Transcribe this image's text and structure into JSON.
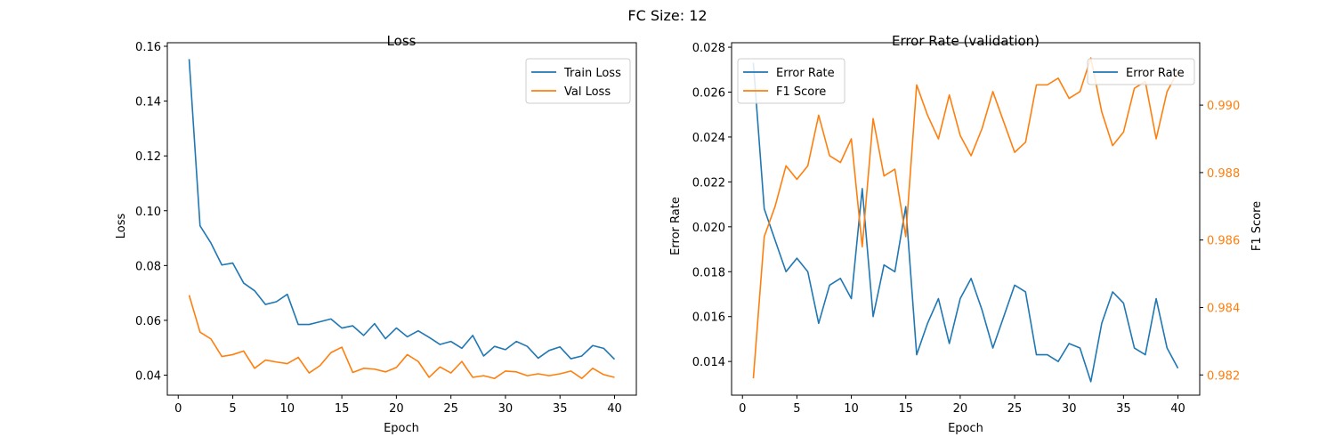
{
  "figure": {
    "suptitle": "FC Size: 12"
  },
  "chart_data": [
    {
      "type": "line",
      "title": "Loss",
      "xlabel": "Epoch",
      "ylabel": "Loss",
      "xlim": [
        -1,
        42
      ],
      "ylim": [
        0.0327,
        0.1613
      ],
      "xticks": [
        0,
        5,
        10,
        15,
        20,
        25,
        30,
        35,
        40
      ],
      "yticks": [
        0.04,
        0.06,
        0.08,
        0.1,
        0.12,
        0.14,
        0.16
      ],
      "ytick_labels": [
        "0.04",
        "0.06",
        "0.08",
        "0.10",
        "0.12",
        "0.14",
        "0.16"
      ],
      "legend_position": "upper right",
      "grid": false,
      "x": [
        1,
        2,
        3,
        4,
        5,
        6,
        7,
        8,
        9,
        10,
        11,
        12,
        13,
        14,
        15,
        16,
        17,
        18,
        19,
        20,
        21,
        22,
        23,
        24,
        25,
        26,
        27,
        28,
        29,
        30,
        31,
        32,
        33,
        34,
        35,
        36,
        37,
        38,
        39,
        40
      ],
      "series": [
        {
          "name": "Train Loss",
          "color": "#1f77b4",
          "values": [
            0.1553,
            0.0945,
            0.0882,
            0.0802,
            0.0809,
            0.0736,
            0.0708,
            0.0658,
            0.0668,
            0.0695,
            0.0585,
            0.0585,
            0.0595,
            0.0605,
            0.0572,
            0.058,
            0.0545,
            0.0588,
            0.0533,
            0.0572,
            0.054,
            0.0562,
            0.0538,
            0.0512,
            0.0523,
            0.0498,
            0.0545,
            0.047,
            0.0505,
            0.0493,
            0.0523,
            0.0505,
            0.0462,
            0.049,
            0.0503,
            0.046,
            0.047,
            0.0508,
            0.0498,
            0.0458
          ]
        },
        {
          "name": "Val Loss",
          "color": "#ff7f0e",
          "values": [
            0.0692,
            0.0557,
            0.0532,
            0.0468,
            0.0475,
            0.0488,
            0.0425,
            0.0455,
            0.0448,
            0.0442,
            0.0465,
            0.0408,
            0.0435,
            0.0482,
            0.0502,
            0.041,
            0.0425,
            0.0422,
            0.0412,
            0.0428,
            0.0475,
            0.045,
            0.0392,
            0.043,
            0.0408,
            0.045,
            0.0392,
            0.0398,
            0.0388,
            0.0415,
            0.0412,
            0.0398,
            0.0405,
            0.0398,
            0.0405,
            0.0415,
            0.0388,
            0.0425,
            0.0402,
            0.0392
          ]
        }
      ]
    },
    {
      "type": "line",
      "title": "Error Rate (validation)",
      "xlabel": "Epoch",
      "ylabel": "Error Rate",
      "y2label": "F1 Score",
      "xlim": [
        -1,
        42
      ],
      "ylim": [
        0.0125,
        0.0282
      ],
      "y2lim": [
        0.9814,
        0.99185
      ],
      "xticks": [
        0,
        5,
        10,
        15,
        20,
        25,
        30,
        35,
        40
      ],
      "yticks": [
        0.014,
        0.016,
        0.018,
        0.02,
        0.022,
        0.024,
        0.026,
        0.028
      ],
      "ytick_labels": [
        "0.014",
        "0.016",
        "0.018",
        "0.020",
        "0.022",
        "0.024",
        "0.026",
        "0.028"
      ],
      "y2ticks": [
        0.982,
        0.984,
        0.986,
        0.988,
        0.99
      ],
      "y2tick_labels": [
        "0.982",
        "0.984",
        "0.986",
        "0.988",
        "0.990"
      ],
      "legend_left": [
        "Error Rate",
        "F1 Score"
      ],
      "legend_right": [
        "Error Rate"
      ],
      "grid": false,
      "x": [
        1,
        2,
        3,
        4,
        5,
        6,
        7,
        8,
        9,
        10,
        11,
        12,
        13,
        14,
        15,
        16,
        17,
        18,
        19,
        20,
        21,
        22,
        23,
        24,
        25,
        26,
        27,
        28,
        29,
        30,
        31,
        32,
        33,
        34,
        35,
        36,
        37,
        38,
        39,
        40
      ],
      "series": [
        {
          "name": "Error Rate",
          "axis": "left",
          "color": "#1f77b4",
          "values": [
            0.0273,
            0.0208,
            0.0194,
            0.018,
            0.0186,
            0.018,
            0.0157,
            0.0174,
            0.0177,
            0.0168,
            0.0217,
            0.016,
            0.0183,
            0.018,
            0.0209,
            0.0143,
            0.0157,
            0.0168,
            0.0148,
            0.0168,
            0.0177,
            0.0163,
            0.0146,
            0.016,
            0.0174,
            0.0171,
            0.0143,
            0.0143,
            0.014,
            0.0148,
            0.0146,
            0.0131,
            0.0157,
            0.0171,
            0.0166,
            0.0146,
            0.0143,
            0.0168,
            0.0146,
            0.0137
          ]
        },
        {
          "name": "F1 Score",
          "axis": "right",
          "color": "#ff7f0e",
          "values": [
            0.9819,
            0.9861,
            0.987,
            0.9882,
            0.9878,
            0.9882,
            0.9897,
            0.9885,
            0.9883,
            0.989,
            0.9858,
            0.9896,
            0.9879,
            0.9881,
            0.9861,
            0.9906,
            0.9897,
            0.989,
            0.9903,
            0.9891,
            0.9885,
            0.9893,
            0.9904,
            0.9895,
            0.9886,
            0.9889,
            0.9906,
            0.9906,
            0.9908,
            0.9902,
            0.9904,
            0.9914,
            0.9898,
            0.9888,
            0.9892,
            0.9905,
            0.9907,
            0.989,
            0.9904,
            0.991
          ]
        }
      ]
    }
  ]
}
